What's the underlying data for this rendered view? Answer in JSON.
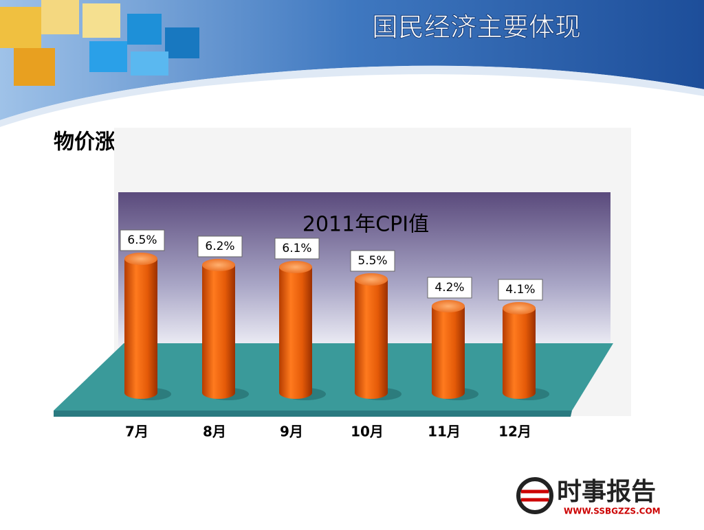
{
  "slide": {
    "title": "国民经济主要体现",
    "subtitle": "物价涨势得到有效遏制",
    "logo_text": "时事报告",
    "logo_url": "WWW.SSBGZZS.COM"
  },
  "chart_data": {
    "type": "bar",
    "title": "2011年CPI值",
    "categories": [
      "7月",
      "8月",
      "9月",
      "10月",
      "11月",
      "12月"
    ],
    "values": [
      6.5,
      6.2,
      6.1,
      5.5,
      4.2,
      4.1
    ],
    "value_labels": [
      "6.5%",
      "6.2%",
      "6.1%",
      "5.5%",
      "4.2%",
      "4.1%"
    ],
    "color": "#e8600a"
  }
}
